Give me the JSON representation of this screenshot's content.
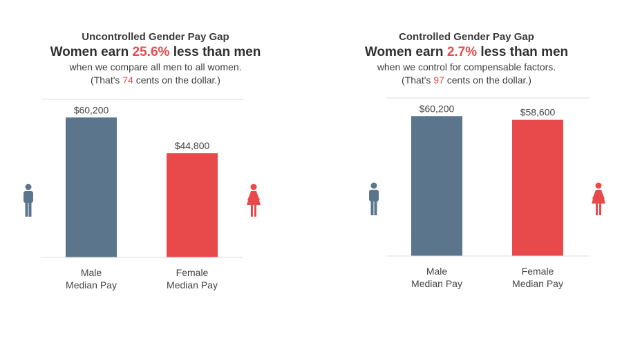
{
  "colors": {
    "male": "#5b758c",
    "female": "#e84a4c",
    "accent": "#e84a4c"
  },
  "icons": {
    "male": "male-person-icon",
    "female": "female-person-icon"
  },
  "panels": [
    {
      "subtitle": "Uncontrolled Gender Pay Gap",
      "headline_pre": "Women earn ",
      "headline_pct": "25.6%",
      "headline_post": " less than men",
      "caption1": "when we compare all men to all women.",
      "caption2_pre": "(That's ",
      "caption2_num": "74",
      "caption2_post": " cents on the dollar.)"
    },
    {
      "subtitle": "Controlled Gender Pay Gap",
      "headline_pre": "Women earn ",
      "headline_pct": "2.7%",
      "headline_post": " less than men",
      "caption1": "when we control for compensable factors.",
      "caption2_pre": "(That's ",
      "caption2_num": "97",
      "caption2_post": " cents on the dollar.)"
    }
  ],
  "chart_data": [
    {
      "type": "bar",
      "title": "Uncontrolled Gender Pay Gap",
      "categories": [
        [
          "Male",
          "Median Pay"
        ],
        [
          "Female",
          "Median Pay"
        ]
      ],
      "values": [
        60200,
        44800
      ],
      "value_labels": [
        "$60,200",
        "$44,800"
      ],
      "colors": [
        "#5b758c",
        "#e84a4c"
      ],
      "ylim": [
        0,
        68000
      ],
      "grid": false
    },
    {
      "type": "bar",
      "title": "Controlled Gender Pay Gap",
      "categories": [
        [
          "Male",
          "Median Pay"
        ],
        [
          "Female",
          "Median Pay"
        ]
      ],
      "values": [
        60200,
        58600
      ],
      "value_labels": [
        "$60,200",
        "$58,600"
      ],
      "colors": [
        "#5b758c",
        "#e84a4c"
      ],
      "ylim": [
        0,
        68000
      ],
      "grid": false
    }
  ]
}
